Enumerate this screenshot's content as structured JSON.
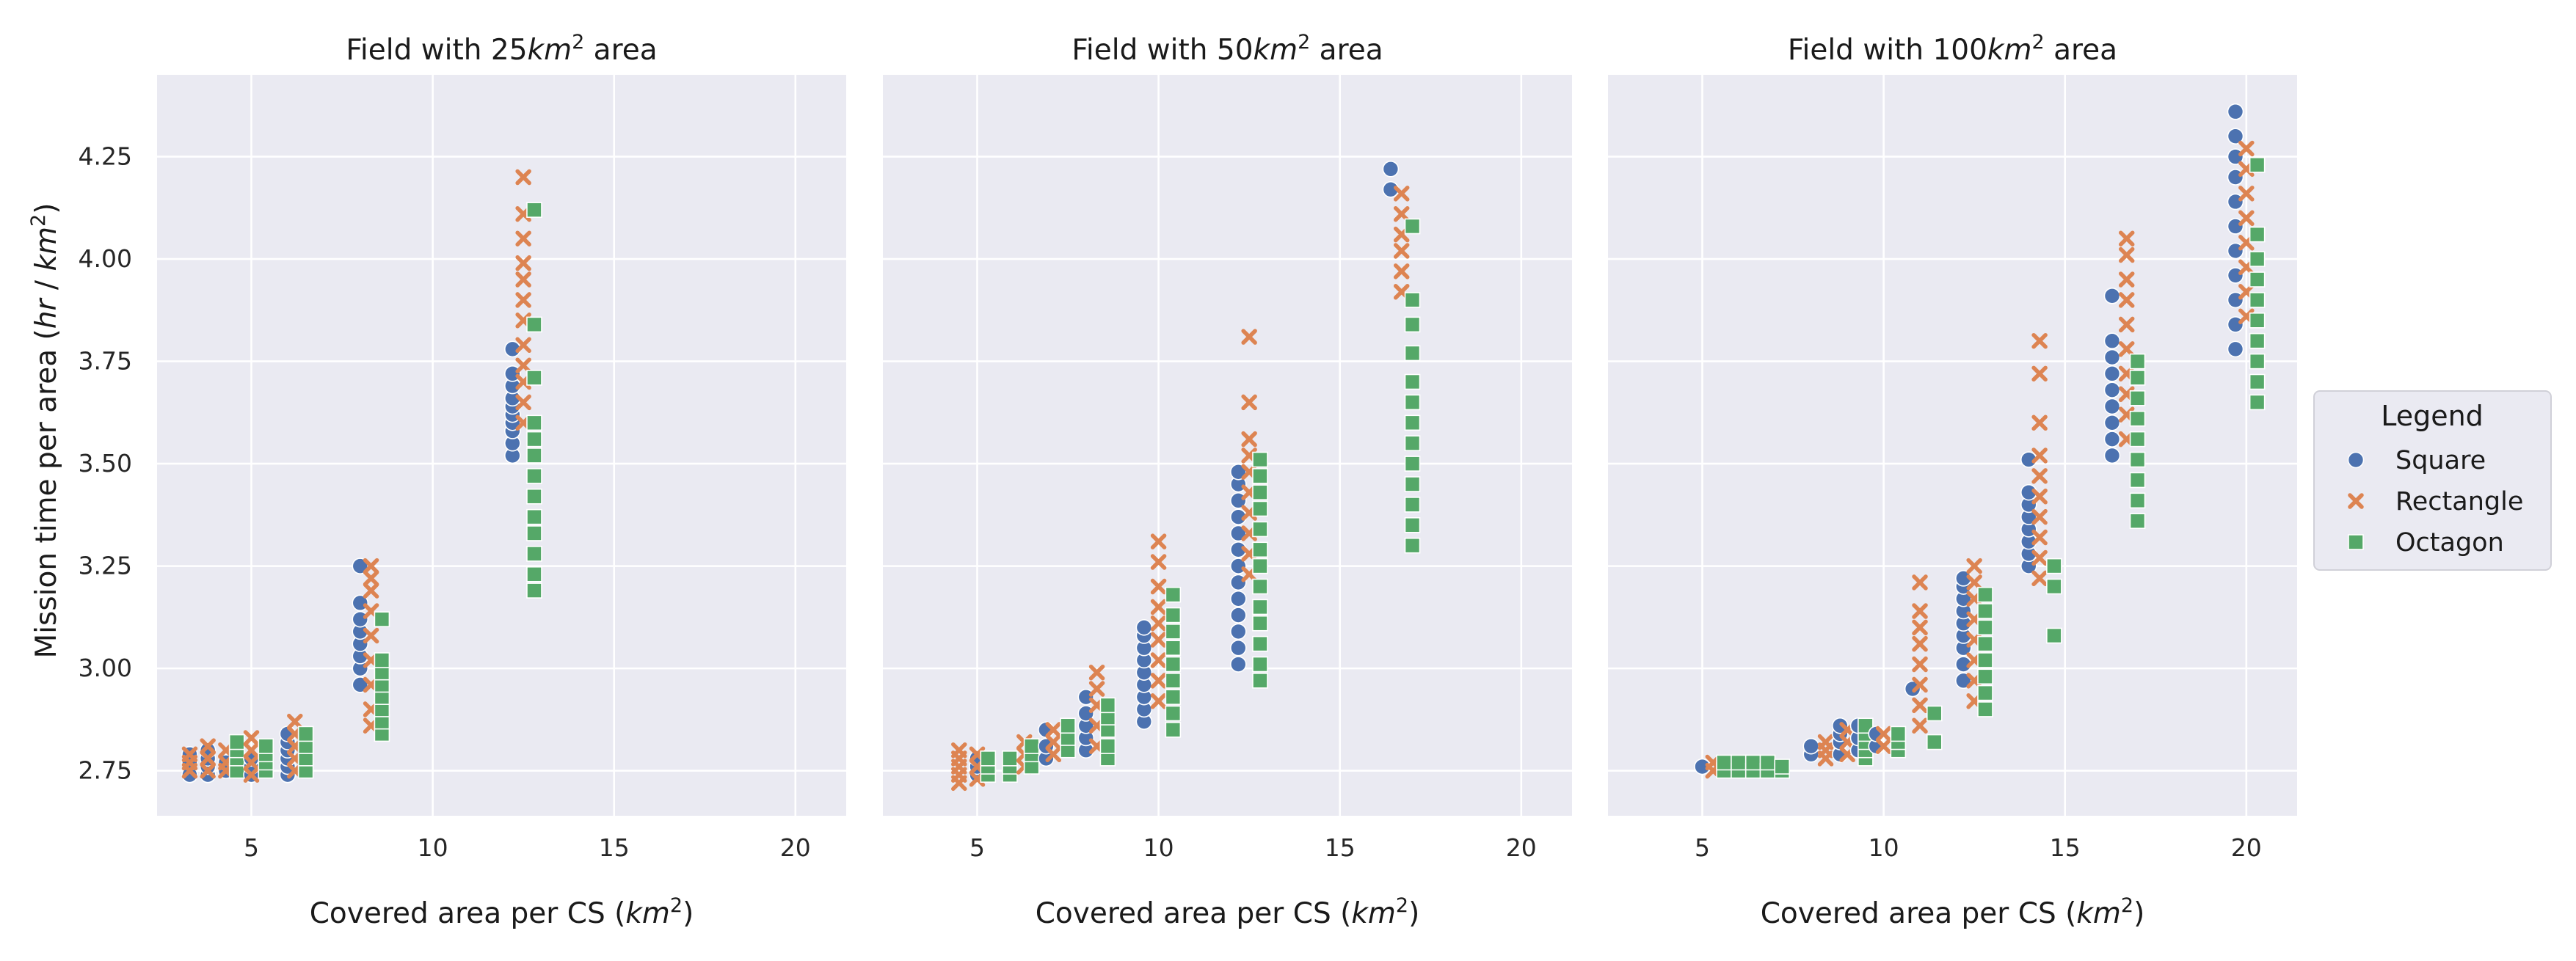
{
  "chart_data": {
    "type": "scatter",
    "ylabel": "Mission time per area (hr / km²)",
    "ylim": [
      2.64,
      4.45
    ],
    "yticks": [
      "2.75",
      "3.00",
      "3.25",
      "3.50",
      "3.75",
      "4.00",
      "4.25"
    ],
    "xticks": [
      "5",
      "10",
      "15",
      "20"
    ],
    "grid": true,
    "legend": {
      "title": "Legend",
      "position": "right-center",
      "entries": [
        {
          "name": "Square",
          "marker": "circle",
          "color": "#4c72b0"
        },
        {
          "name": "Rectangle",
          "marker": "x",
          "color": "#dd8452"
        },
        {
          "name": "Octagon",
          "marker": "square",
          "color": "#55a868"
        }
      ]
    },
    "panels": [
      {
        "title": "Field with 25km² area",
        "title_parts": [
          "Field with 25",
          "km",
          "2",
          " area"
        ],
        "xlabel": "Covered area per CS (km²)",
        "xlim": [
          2.4,
          21.4
        ],
        "groups": [
          {
            "series": "Square",
            "x": 3.3,
            "y": [
              2.74,
              2.77,
              2.79
            ]
          },
          {
            "series": "Rectangle",
            "x": 3.3,
            "y": [
              2.75,
              2.77,
              2.79
            ]
          },
          {
            "series": "Square",
            "x": 3.8,
            "y": [
              2.74,
              2.76,
              2.78,
              2.8
            ]
          },
          {
            "series": "Rectangle",
            "x": 3.8,
            "y": [
              2.75,
              2.78,
              2.81
            ]
          },
          {
            "series": "Square",
            "x": 4.3,
            "y": [
              2.75,
              2.77
            ]
          },
          {
            "series": "Rectangle",
            "x": 4.3,
            "y": [
              2.75,
              2.77,
              2.8
            ]
          },
          {
            "series": "Octagon",
            "x": 4.6,
            "y": [
              2.75,
              2.78,
              2.8,
              2.82
            ]
          },
          {
            "series": "Square",
            "x": 5.0,
            "y": [
              2.74,
              2.76,
              2.78
            ]
          },
          {
            "series": "Rectangle",
            "x": 5.0,
            "y": [
              2.74,
              2.77,
              2.8,
              2.83
            ]
          },
          {
            "series": "Octagon",
            "x": 5.4,
            "y": [
              2.75,
              2.77,
              2.79,
              2.81
            ]
          },
          {
            "series": "Square",
            "x": 6.0,
            "y": [
              2.74,
              2.76,
              2.78,
              2.8,
              2.82,
              2.84
            ]
          },
          {
            "series": "Rectangle",
            "x": 6.2,
            "y": [
              2.75,
              2.78,
              2.81,
              2.84,
              2.87
            ]
          },
          {
            "series": "Octagon",
            "x": 6.5,
            "y": [
              2.75,
              2.78,
              2.81,
              2.84
            ]
          },
          {
            "series": "Square",
            "x": 8.0,
            "y": [
              2.96,
              3.0,
              3.03,
              3.06,
              3.09,
              3.12,
              3.16,
              3.25
            ]
          },
          {
            "series": "Rectangle",
            "x": 8.3,
            "y": [
              2.86,
              2.9,
              2.96,
              3.02,
              3.08,
              3.14,
              3.19,
              3.22,
              3.25
            ]
          },
          {
            "series": "Octagon",
            "x": 8.6,
            "y": [
              2.84,
              2.87,
              2.9,
              2.93,
              2.96,
              2.99,
              3.02,
              3.12
            ]
          },
          {
            "series": "Square",
            "x": 12.2,
            "y": [
              3.52,
              3.55,
              3.58,
              3.6,
              3.62,
              3.64,
              3.66,
              3.69,
              3.72,
              3.78
            ]
          },
          {
            "series": "Rectangle",
            "x": 12.5,
            "y": [
              3.6,
              3.65,
              3.7,
              3.74,
              3.79,
              3.85,
              3.9,
              3.95,
              3.99,
              4.05,
              4.11,
              4.2
            ]
          },
          {
            "series": "Octagon",
            "x": 12.8,
            "y": [
              3.19,
              3.23,
              3.28,
              3.33,
              3.37,
              3.42,
              3.47,
              3.52,
              3.56,
              3.6,
              3.71,
              3.84,
              4.12
            ]
          }
        ]
      },
      {
        "title": "Field with 50km² area",
        "title_parts": [
          "Field with 50",
          "km",
          "2",
          " area"
        ],
        "xlabel": "Covered area per CS (km²)",
        "xlim": [
          2.4,
          21.4
        ],
        "groups": [
          {
            "series": "Rectangle",
            "x": 4.5,
            "y": [
              2.72,
              2.74,
              2.76,
              2.78,
              2.8
            ]
          },
          {
            "series": "Square",
            "x": 5.0,
            "y": [
              2.74,
              2.76,
              2.78
            ]
          },
          {
            "series": "Rectangle",
            "x": 5.0,
            "y": [
              2.73,
              2.76,
              2.79
            ]
          },
          {
            "series": "Octagon",
            "x": 5.3,
            "y": [
              2.74,
              2.76,
              2.78
            ]
          },
          {
            "series": "Octagon",
            "x": 5.9,
            "y": [
              2.74,
              2.76,
              2.78
            ]
          },
          {
            "series": "Rectangle",
            "x": 6.3,
            "y": [
              2.76,
              2.79,
              2.82
            ]
          },
          {
            "series": "Octagon",
            "x": 6.5,
            "y": [
              2.76,
              2.79,
              2.81
            ]
          },
          {
            "series": "Square",
            "x": 6.9,
            "y": [
              2.78,
              2.81,
              2.85
            ]
          },
          {
            "series": "Rectangle",
            "x": 7.1,
            "y": [
              2.79,
              2.82,
              2.85
            ]
          },
          {
            "series": "Octagon",
            "x": 7.5,
            "y": [
              2.8,
              2.83,
              2.86
            ]
          },
          {
            "series": "Square",
            "x": 8.0,
            "y": [
              2.8,
              2.83,
              2.86,
              2.89,
              2.93
            ]
          },
          {
            "series": "Rectangle",
            "x": 8.3,
            "y": [
              2.81,
              2.86,
              2.91,
              2.95,
              2.99
            ]
          },
          {
            "series": "Octagon",
            "x": 8.6,
            "y": [
              2.78,
              2.81,
              2.85,
              2.88,
              2.91
            ]
          },
          {
            "series": "Square",
            "x": 9.6,
            "y": [
              2.87,
              2.9,
              2.93,
              2.96,
              2.99,
              3.02,
              3.05,
              3.08,
              3.1
            ]
          },
          {
            "series": "Rectangle",
            "x": 10.0,
            "y": [
              2.92,
              2.97,
              3.02,
              3.07,
              3.11,
              3.15,
              3.2,
              3.26,
              3.31
            ]
          },
          {
            "series": "Octagon",
            "x": 10.4,
            "y": [
              2.85,
              2.89,
              2.93,
              2.97,
              3.01,
              3.05,
              3.09,
              3.13,
              3.18
            ]
          },
          {
            "series": "Square",
            "x": 12.2,
            "y": [
              3.01,
              3.05,
              3.09,
              3.13,
              3.17,
              3.21,
              3.25,
              3.29,
              3.33,
              3.37,
              3.41,
              3.45,
              3.48
            ]
          },
          {
            "series": "Rectangle",
            "x": 12.5,
            "y": [
              3.23,
              3.28,
              3.33,
              3.38,
              3.43,
              3.48,
              3.52,
              3.56,
              3.65,
              3.81
            ]
          },
          {
            "series": "Octagon",
            "x": 12.8,
            "y": [
              2.97,
              3.01,
              3.06,
              3.11,
              3.15,
              3.2,
              3.25,
              3.29,
              3.34,
              3.39,
              3.43,
              3.47,
              3.51
            ]
          },
          {
            "series": "Square",
            "x": 16.4,
            "y": [
              4.17,
              4.22
            ]
          },
          {
            "series": "Rectangle",
            "x": 16.7,
            "y": [
              3.92,
              3.97,
              4.02,
              4.06,
              4.11,
              4.16
            ]
          },
          {
            "series": "Octagon",
            "x": 17.0,
            "y": [
              3.3,
              3.35,
              3.4,
              3.45,
              3.5,
              3.55,
              3.6,
              3.65,
              3.7,
              3.77,
              3.84,
              3.9,
              4.08
            ]
          }
        ]
      },
      {
        "title": "Field with 100km² area",
        "title_parts": [
          "Field with 100",
          "km",
          "2",
          " area"
        ],
        "xlabel": "Covered area per CS (km²)",
        "xlim": [
          2.4,
          21.4
        ],
        "groups": [
          {
            "series": "Square",
            "x": 5.0,
            "y": [
              2.76
            ]
          },
          {
            "series": "Rectangle",
            "x": 5.3,
            "y": [
              2.75,
              2.77
            ]
          },
          {
            "series": "Octagon",
            "x": 5.6,
            "y": [
              2.75,
              2.77
            ]
          },
          {
            "series": "Octagon",
            "x": 6.0,
            "y": [
              2.75,
              2.77
            ]
          },
          {
            "series": "Octagon",
            "x": 6.4,
            "y": [
              2.75,
              2.77
            ]
          },
          {
            "series": "Octagon",
            "x": 6.8,
            "y": [
              2.75,
              2.77
            ]
          },
          {
            "series": "Octagon",
            "x": 7.2,
            "y": [
              2.75,
              2.76
            ]
          },
          {
            "series": "Square",
            "x": 8.0,
            "y": [
              2.79,
              2.81
            ]
          },
          {
            "series": "Rectangle",
            "x": 8.4,
            "y": [
              2.78,
              2.8,
              2.82
            ]
          },
          {
            "series": "Square",
            "x": 8.8,
            "y": [
              2.79,
              2.82,
              2.84,
              2.86
            ]
          },
          {
            "series": "Rectangle",
            "x": 9.0,
            "y": [
              2.79,
              2.82,
              2.85
            ]
          },
          {
            "series": "Square",
            "x": 9.3,
            "y": [
              2.8,
              2.83,
              2.86
            ]
          },
          {
            "series": "Octagon",
            "x": 9.5,
            "y": [
              2.78,
              2.8,
              2.82,
              2.84,
              2.86
            ]
          },
          {
            "series": "Square",
            "x": 9.8,
            "y": [
              2.81,
              2.84
            ]
          },
          {
            "series": "Rectangle",
            "x": 10.0,
            "y": [
              2.81,
              2.84
            ]
          },
          {
            "series": "Octagon",
            "x": 10.4,
            "y": [
              2.8,
              2.82,
              2.84
            ]
          },
          {
            "series": "Square",
            "x": 10.8,
            "y": [
              2.95
            ]
          },
          {
            "series": "Rectangle",
            "x": 11.0,
            "y": [
              2.86,
              2.91,
              2.96,
              3.01,
              3.06,
              3.1,
              3.14,
              3.21
            ]
          },
          {
            "series": "Octagon",
            "x": 11.4,
            "y": [
              2.82,
              2.89
            ]
          },
          {
            "series": "Square",
            "x": 12.2,
            "y": [
              2.97,
              3.01,
              3.05,
              3.08,
              3.11,
              3.14,
              3.17,
              3.2,
              3.22
            ]
          },
          {
            "series": "Rectangle",
            "x": 12.5,
            "y": [
              2.92,
              2.97,
              3.02,
              3.07,
              3.12,
              3.17,
              3.21,
              3.25
            ]
          },
          {
            "series": "Octagon",
            "x": 12.8,
            "y": [
              2.9,
              2.94,
              2.98,
              3.02,
              3.06,
              3.1,
              3.14,
              3.18
            ]
          },
          {
            "series": "Square",
            "x": 14.0,
            "y": [
              3.25,
              3.28,
              3.31,
              3.34,
              3.37,
              3.4,
              3.43,
              3.51
            ]
          },
          {
            "series": "Rectangle",
            "x": 14.3,
            "y": [
              3.22,
              3.27,
              3.32,
              3.37,
              3.42,
              3.47,
              3.52,
              3.6,
              3.72,
              3.8
            ]
          },
          {
            "series": "Octagon",
            "x": 14.7,
            "y": [
              3.08,
              3.2,
              3.25
            ]
          },
          {
            "series": "Square",
            "x": 16.3,
            "y": [
              3.52,
              3.56,
              3.6,
              3.64,
              3.68,
              3.72,
              3.76,
              3.8,
              3.91
            ]
          },
          {
            "series": "Rectangle",
            "x": 16.7,
            "y": [
              3.56,
              3.62,
              3.67,
              3.72,
              3.78,
              3.84,
              3.9,
              3.95,
              4.01,
              4.05
            ]
          },
          {
            "series": "Octagon",
            "x": 17.0,
            "y": [
              3.36,
              3.41,
              3.46,
              3.51,
              3.56,
              3.61,
              3.66,
              3.71,
              3.75
            ]
          },
          {
            "series": "Square",
            "x": 19.7,
            "y": [
              3.78,
              3.84,
              3.9,
              3.96,
              4.02,
              4.08,
              4.14,
              4.2,
              4.25,
              4.3,
              4.36
            ]
          },
          {
            "series": "Rectangle",
            "x": 20.0,
            "y": [
              3.86,
              3.92,
              3.98,
              4.04,
              4.1,
              4.16,
              4.22,
              4.27
            ]
          },
          {
            "series": "Octagon",
            "x": 20.3,
            "y": [
              3.65,
              3.7,
              3.75,
              3.8,
              3.85,
              3.9,
              3.95,
              4.0,
              4.06,
              4.23
            ]
          }
        ]
      }
    ]
  }
}
